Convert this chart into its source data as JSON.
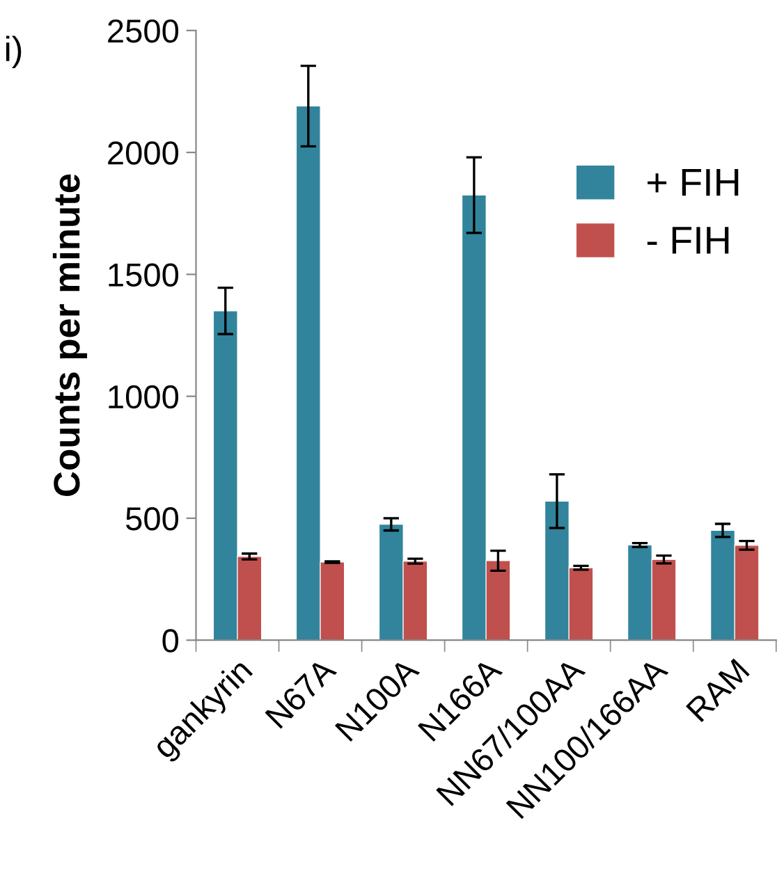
{
  "chart_data": {
    "type": "bar",
    "ylabel": "Counts per minute",
    "annotations": [
      "i)"
    ],
    "categories": [
      "gankyrin",
      "N67A",
      "N100A",
      "N166A",
      "NN67/100AA",
      "NN100/166AA",
      "RAM"
    ],
    "series": [
      {
        "name": "+ FIH",
        "color": "#31849b",
        "values": [
          1350,
          2190,
          475,
          1825,
          570,
          390,
          450
        ],
        "errors": [
          95,
          165,
          25,
          155,
          110,
          8,
          27
        ]
      },
      {
        "name": "- FIH",
        "color": "#c0504d",
        "values": [
          343,
          320,
          324,
          326,
          297,
          331,
          389
        ],
        "errors": [
          12,
          3,
          10,
          41,
          8,
          16,
          18
        ]
      }
    ],
    "ylim": [
      0,
      2500
    ],
    "yticks": [
      0,
      500,
      1000,
      1500,
      2000,
      2500
    ],
    "grid": false,
    "legend": "right"
  }
}
